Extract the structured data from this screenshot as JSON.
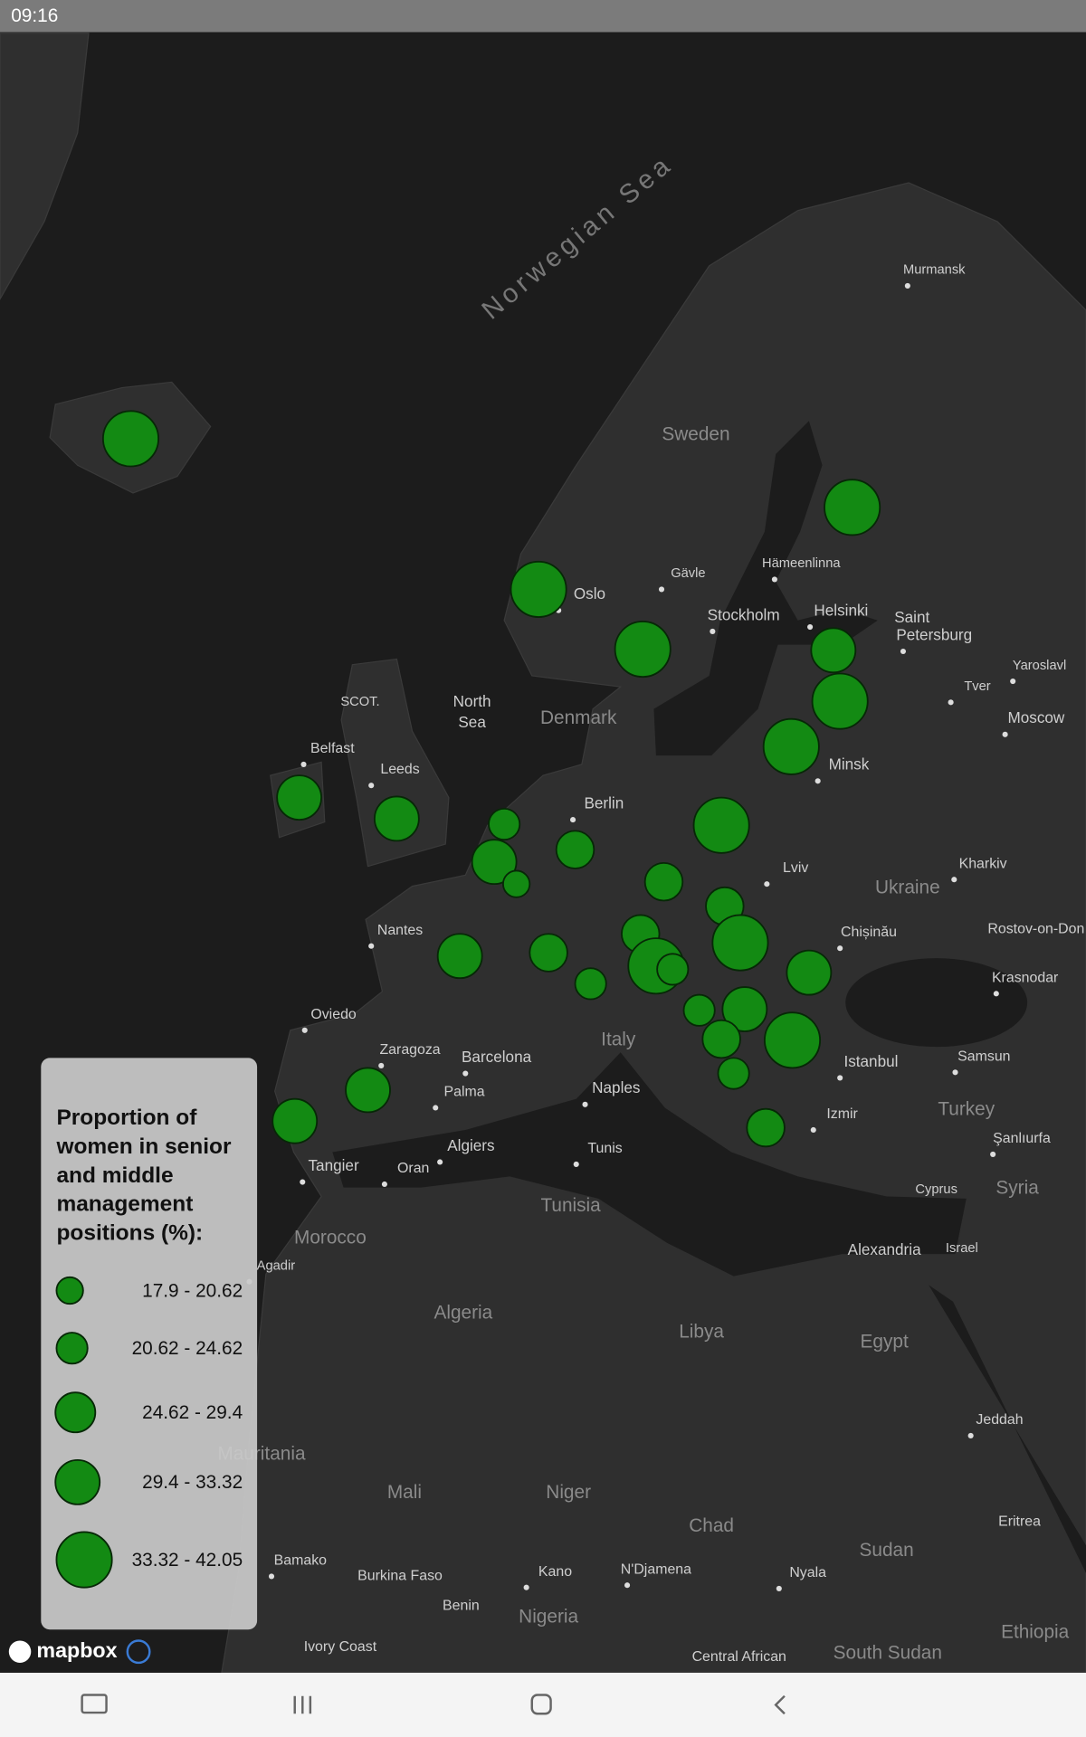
{
  "status_bar": {
    "time": "09:16"
  },
  "map": {
    "sea_label": "Norwegian Sea",
    "labels": [
      "Murmansk",
      "Sweden",
      "Hämeenlinna",
      "Gävle",
      "Oslo",
      "Stockholm",
      "Helsinki",
      "Saint",
      "Petersburg",
      "Yaroslavl",
      "Tver",
      "Moscow",
      "SCOT.",
      "North",
      "Sea",
      "Denmark",
      "Belfast",
      "Leeds",
      "Minsk",
      "Berlin",
      "Lviv",
      "Kharkiv",
      "Ukraine",
      "Nantes",
      "Chișinău",
      "Rostov-on-Don",
      "Krasnodar",
      "Oviedo",
      "Zaragoza",
      "Barcelona",
      "Italy",
      "Istanbul",
      "Samsun",
      "Naples",
      "Palma",
      "Turkey",
      "Izmir",
      "Algiers",
      "Tunis",
      "Şanlıurfa",
      "Tangier",
      "Oran",
      "Cyprus",
      "Syria",
      "Tunisia",
      "Morocco",
      "Alexandria",
      "Israel",
      "Agadir",
      "Algeria",
      "Libya",
      "Egypt",
      "Jeddah",
      "Mauritania",
      "Mali",
      "Niger",
      "Chad",
      "Sudan",
      "Eritrea",
      "Bamako",
      "Burkina Faso",
      "Kano",
      "N'Djamena",
      "Nyala",
      "Benin",
      "Nigeria",
      "Ethiopia",
      "Ivory Coast",
      "South Sudan",
      "Central African"
    ]
  },
  "legend": {
    "title": [
      "Proportion of",
      "women in senior",
      "and middle",
      "management",
      "positions (%):"
    ],
    "items": [
      "17.9 - 20.62",
      "20.62 - 24.62",
      "24.62 - 29.4",
      "29.4 - 33.32",
      "33.32 - 42.05"
    ]
  },
  "attribution": "mapbox"
}
